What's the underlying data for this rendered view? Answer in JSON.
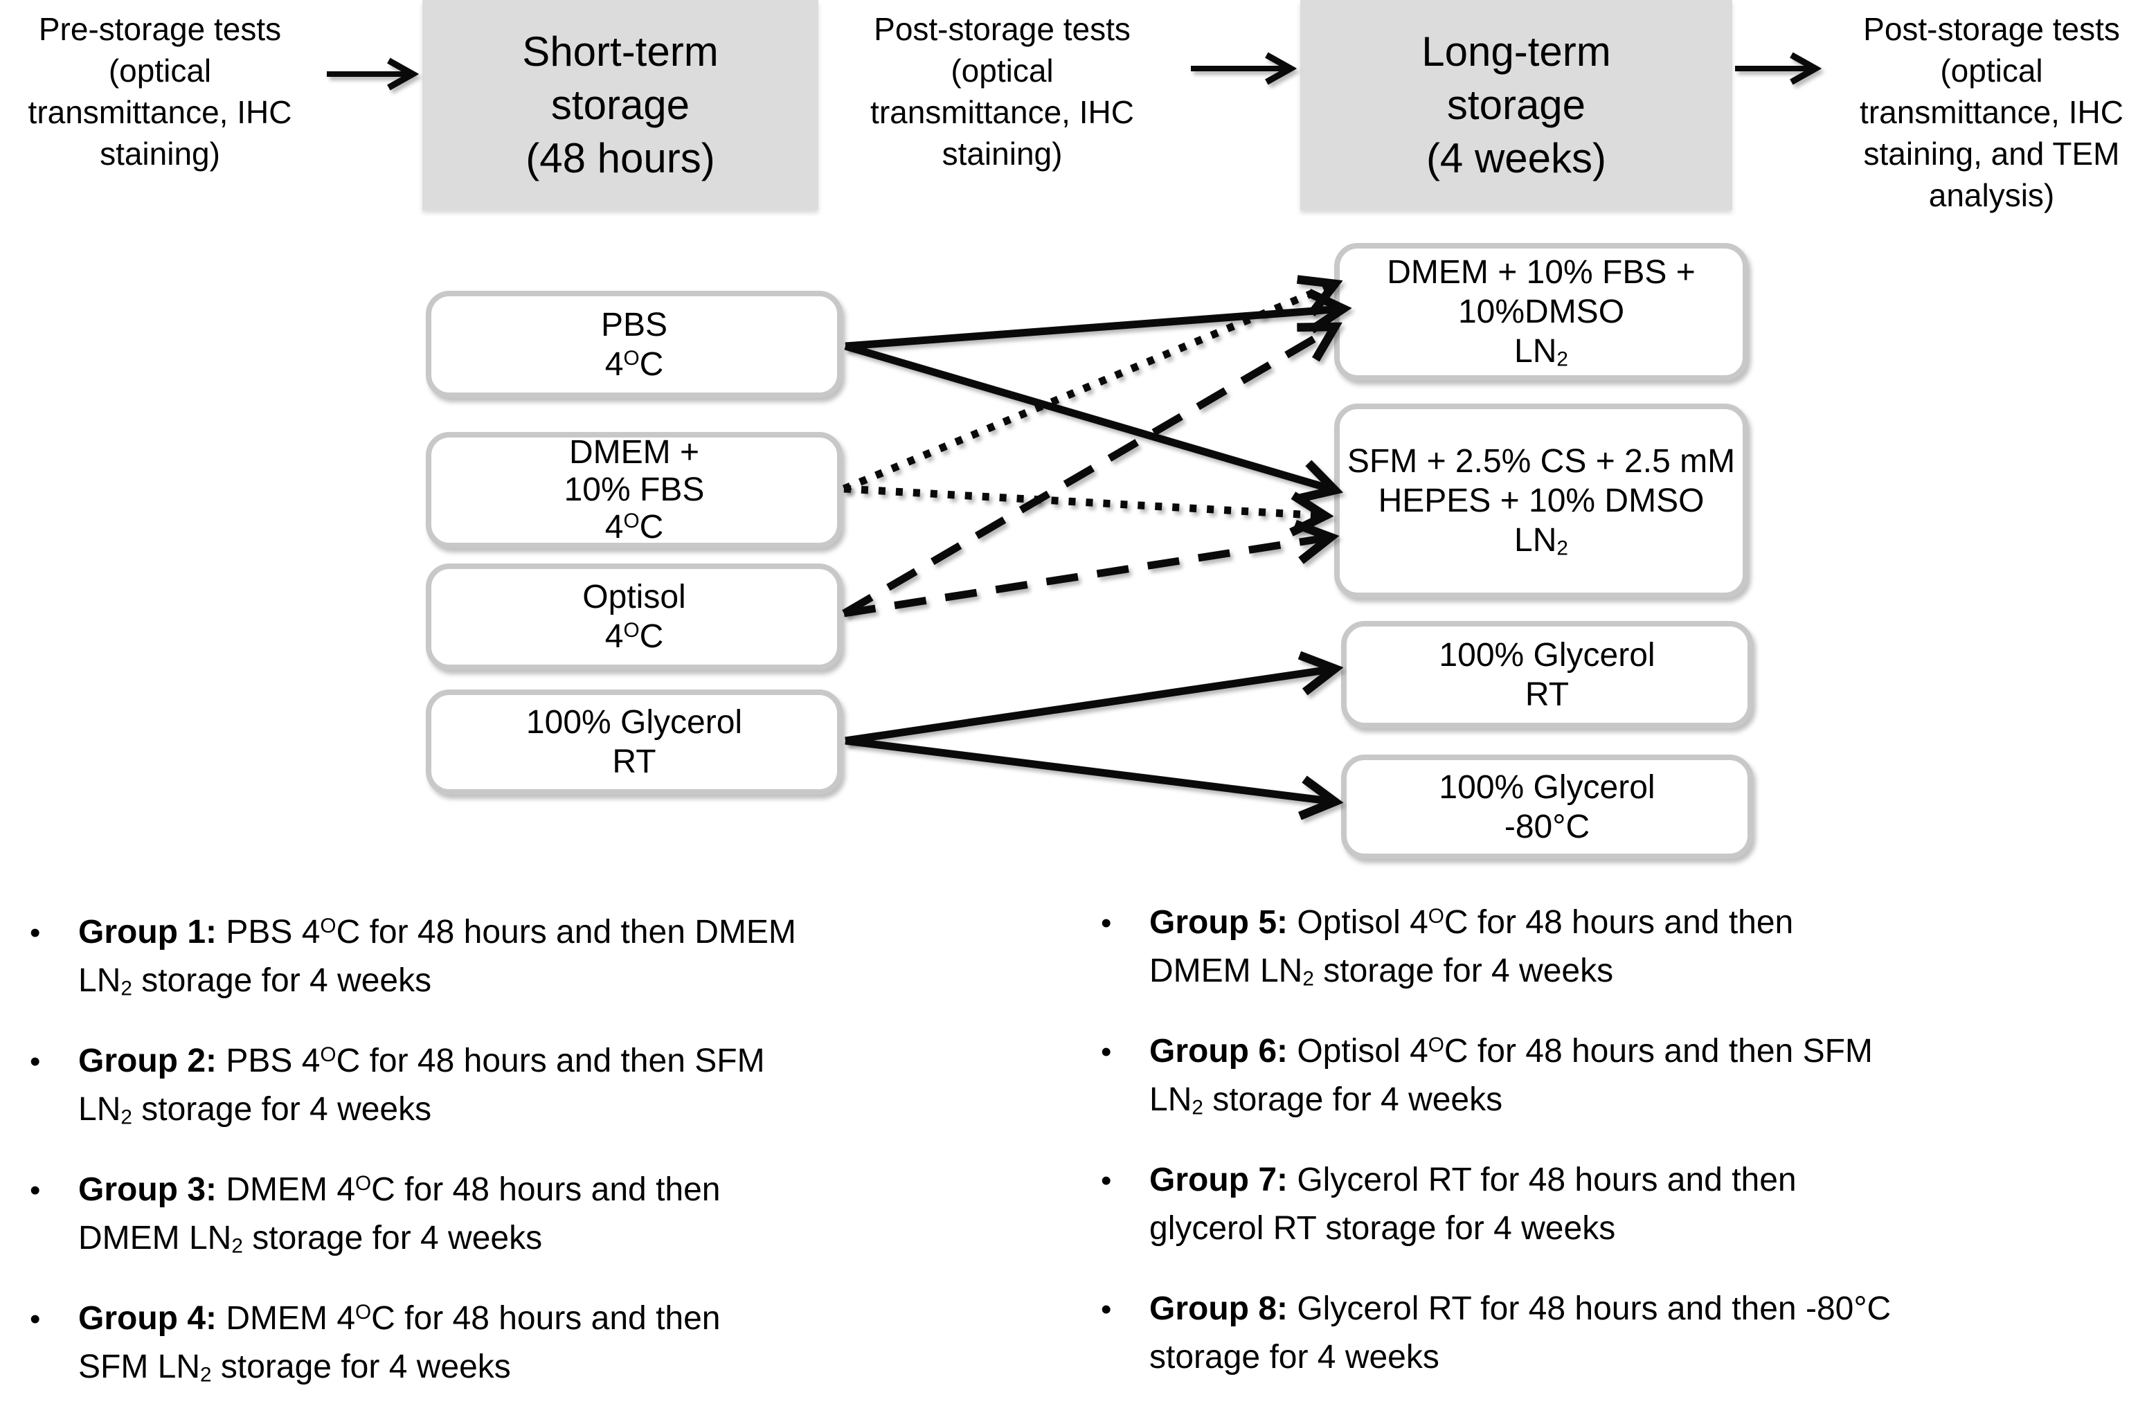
{
  "colors": {
    "stage_fill": "#dcdcdc",
    "node_border": "#c8c8c8",
    "arrow": "#0a0a0a",
    "text": "#000000"
  },
  "header": {
    "pre_tests": [
      "Pre-storage tests",
      "(optical",
      "transmittance, IHC",
      "staining)"
    ],
    "short_term": [
      "Short-term",
      "storage",
      "(48 hours)"
    ],
    "mid_tests": [
      "Post-storage tests",
      "(optical",
      "transmittance, IHC",
      "staining)"
    ],
    "long_term": [
      "Long-term",
      "storage",
      "(4 weeks)"
    ],
    "post_tests": [
      "Post-storage tests",
      "(optical",
      "transmittance, IHC",
      "staining, and TEM",
      "analysis)"
    ]
  },
  "nodes": {
    "pbs": {
      "lines": [
        [
          "PBS"
        ],
        [
          "4",
          {
            "t": "O",
            "s": "sup"
          },
          "C"
        ]
      ]
    },
    "dmem": {
      "lines": [
        [
          "DMEM +"
        ],
        [
          "10% FBS"
        ],
        [
          "4",
          {
            "t": "O",
            "s": "sup"
          },
          "C"
        ]
      ]
    },
    "optisol": {
      "lines": [
        [
          "Optisol"
        ],
        [
          "4",
          {
            "t": "O",
            "s": "sup"
          },
          "C"
        ]
      ]
    },
    "glycerol": {
      "lines": [
        [
          "100% Glycerol"
        ],
        [
          "RT"
        ]
      ]
    },
    "dmem_dmso": {
      "lines": [
        [
          "DMEM + 10% FBS +"
        ],
        [
          "10%DMSO"
        ],
        [
          "LN",
          {
            "t": "2",
            "s": "sub"
          }
        ]
      ]
    },
    "sfm": {
      "lines": [
        [
          "SFM + 2.5% CS + 2.5 mM"
        ],
        [
          "HEPES + 10% DMSO"
        ],
        [
          "LN",
          {
            "t": "2",
            "s": "sub"
          }
        ]
      ]
    },
    "gly_rt": {
      "lines": [
        [
          "100% Glycerol"
        ],
        [
          "RT"
        ]
      ]
    },
    "gly_m80": {
      "lines": [
        [
          "100% Glycerol"
        ],
        [
          "-80°C"
        ]
      ]
    }
  },
  "arrows": [
    {
      "name": "flow-arrow-pre-to-short",
      "style": "solid",
      "width": 8,
      "pts": [
        472,
        107,
        596,
        107
      ]
    },
    {
      "name": "flow-arrow-mid-to-long",
      "style": "solid",
      "width": 8,
      "pts": [
        1720,
        99,
        1864,
        99
      ]
    },
    {
      "name": "flow-arrow-long-to-post",
      "style": "solid",
      "width": 8,
      "pts": [
        2506,
        99,
        2622,
        99
      ]
    },
    {
      "name": "edge-pbs-to-dmem-dmso",
      "style": "solid",
      "width": 11,
      "pts": [
        1221,
        500,
        1940,
        446
      ]
    },
    {
      "name": "edge-pbs-to-sfm",
      "style": "solid",
      "width": 11,
      "pts": [
        1221,
        500,
        1928,
        708
      ]
    },
    {
      "name": "edge-dmem-to-dmem-dmso",
      "style": "dotted",
      "width": 11,
      "pts": [
        1219,
        706,
        1928,
        410
      ]
    },
    {
      "name": "edge-dmem-to-sfm",
      "style": "dotted",
      "width": 11,
      "pts": [
        1219,
        706,
        1914,
        745
      ]
    },
    {
      "name": "edge-optisol-to-dmem-dmso",
      "style": "dashed",
      "width": 11,
      "pts": [
        1219,
        886,
        1928,
        472
      ]
    },
    {
      "name": "edge-optisol-to-sfm",
      "style": "dashed",
      "width": 11,
      "pts": [
        1219,
        886,
        1922,
        776
      ]
    },
    {
      "name": "edge-glycerol-to-gly-rt",
      "style": "solid",
      "width": 11,
      "pts": [
        1221,
        1070,
        1928,
        966
      ]
    },
    {
      "name": "edge-glycerol-to-gly-m80",
      "style": "solid",
      "width": 11,
      "pts": [
        1221,
        1070,
        1928,
        1158
      ]
    }
  ],
  "groups": [
    {
      "lines": [
        [
          {
            "t": "Group 1:",
            "s": "b"
          },
          " PBS 4",
          {
            "t": "O",
            "s": "sup"
          },
          "C for 48 hours and then DMEM"
        ],
        [
          "LN",
          {
            "t": "2",
            "s": "sub"
          },
          " storage for 4 weeks"
        ]
      ]
    },
    {
      "lines": [
        [
          {
            "t": "Group 2:",
            "s": "b"
          },
          " PBS 4",
          {
            "t": "O",
            "s": "sup"
          },
          "C for 48 hours and then SFM"
        ],
        [
          "LN",
          {
            "t": "2",
            "s": "sub"
          },
          " storage for 4 weeks"
        ]
      ]
    },
    {
      "lines": [
        [
          {
            "t": "Group 3:",
            "s": "b"
          },
          " DMEM 4",
          {
            "t": "O",
            "s": "sup"
          },
          "C for 48 hours and then"
        ],
        [
          "DMEM LN",
          {
            "t": "2",
            "s": "sub"
          },
          " storage for 4 weeks"
        ]
      ]
    },
    {
      "lines": [
        [
          {
            "t": "Group 4:",
            "s": "b"
          },
          " DMEM 4",
          {
            "t": "O",
            "s": "sup"
          },
          "C for 48 hours and then"
        ],
        [
          "SFM LN",
          {
            "t": "2",
            "s": "sub"
          },
          " storage for 4 weeks"
        ]
      ]
    },
    {
      "lines": [
        [
          {
            "t": "Group 5:",
            "s": "b"
          },
          " Optisol 4",
          {
            "t": "O",
            "s": "sup"
          },
          "C for 48 hours and then"
        ],
        [
          "DMEM LN",
          {
            "t": "2",
            "s": "sub"
          },
          " storage for 4 weeks"
        ]
      ]
    },
    {
      "lines": [
        [
          {
            "t": "Group 6:",
            "s": "b"
          },
          " Optisol 4",
          {
            "t": "O",
            "s": "sup"
          },
          "C for 48 hours and then SFM"
        ],
        [
          "LN",
          {
            "t": "2",
            "s": "sub"
          },
          " storage for 4 weeks"
        ]
      ]
    },
    {
      "lines": [
        [
          {
            "t": "Group 7:",
            "s": "b"
          },
          " Glycerol RT for 48 hours and then"
        ],
        [
          "glycerol RT storage for 4 weeks"
        ]
      ]
    },
    {
      "lines": [
        [
          {
            "t": "Group 8:",
            "s": "b"
          },
          " Glycerol RT for 48 hours and then -80°C"
        ],
        [
          "storage for 4 weeks"
        ]
      ]
    }
  ]
}
